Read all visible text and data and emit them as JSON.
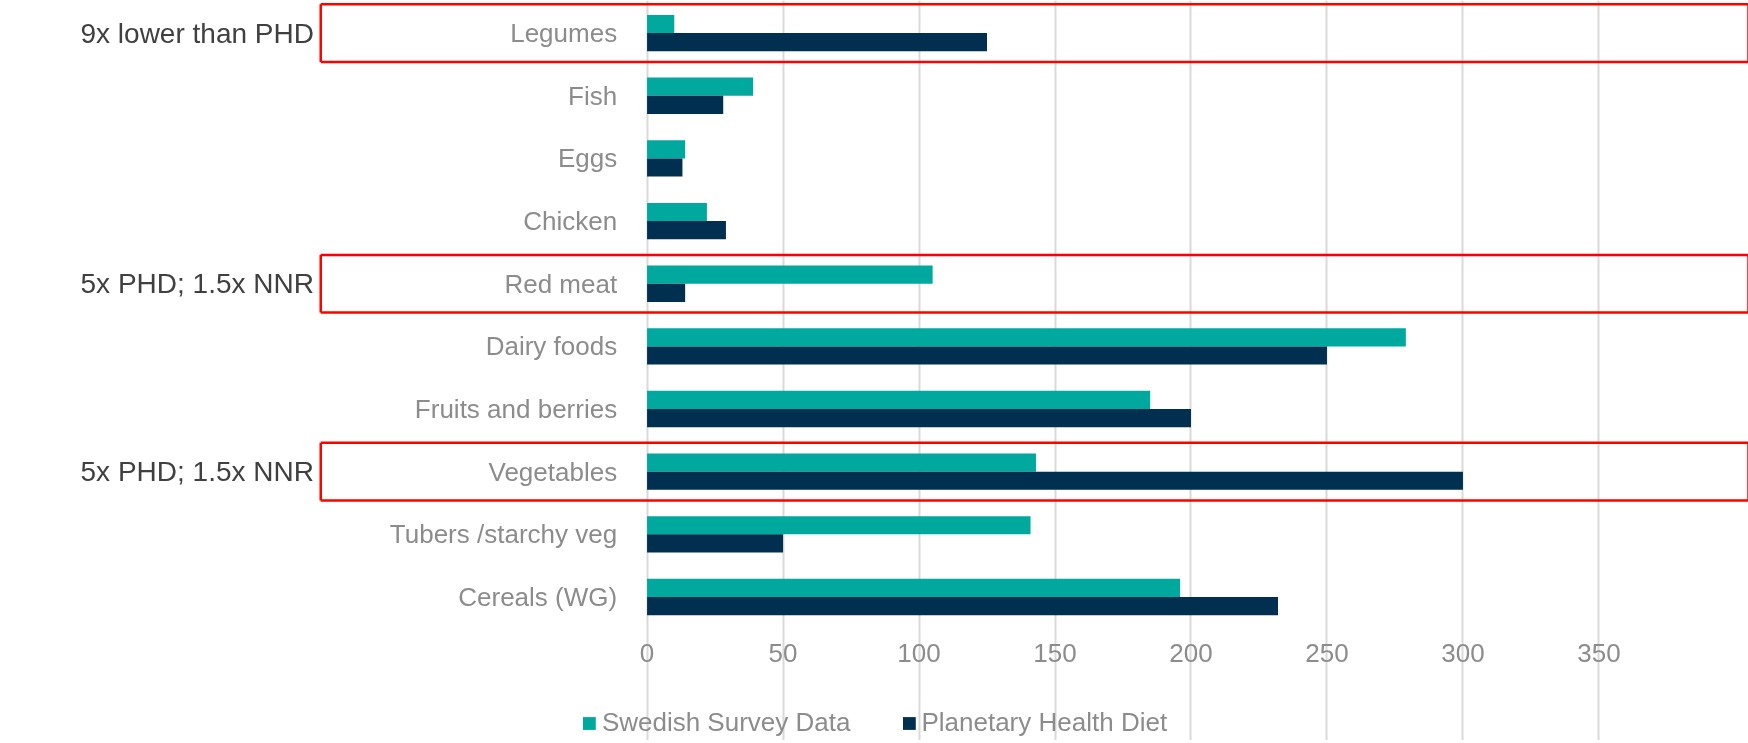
{
  "chart_data": {
    "type": "bar",
    "orientation": "horizontal",
    "categories": [
      "Legumes",
      "Fish",
      "Eggs",
      "Chicken",
      "Red meat",
      "Dairy foods",
      "Fruits and berries",
      "Vegetables",
      "Tubers /starchy veg",
      "Cereals (WG)"
    ],
    "series": [
      {
        "name": "Swedish Survey Data",
        "color": "#00a89d",
        "values": [
          10,
          39,
          14,
          22,
          105,
          279,
          185,
          143,
          141,
          196
        ]
      },
      {
        "name": "Planetary Health Diet",
        "color": "#002f4f",
        "values": [
          125,
          28,
          13,
          29,
          14,
          250,
          200,
          300,
          50,
          232
        ]
      }
    ],
    "xlim": [
      0,
      405
    ],
    "xticks": [
      0,
      50,
      100,
      150,
      200,
      250,
      300,
      350
    ],
    "grid": "x",
    "legend": "bottom",
    "annotations": [
      "9x lower than PHD",
      "5x PHD; 1.5x NNR",
      "5x PHD; 1.5x NNR"
    ]
  }
}
